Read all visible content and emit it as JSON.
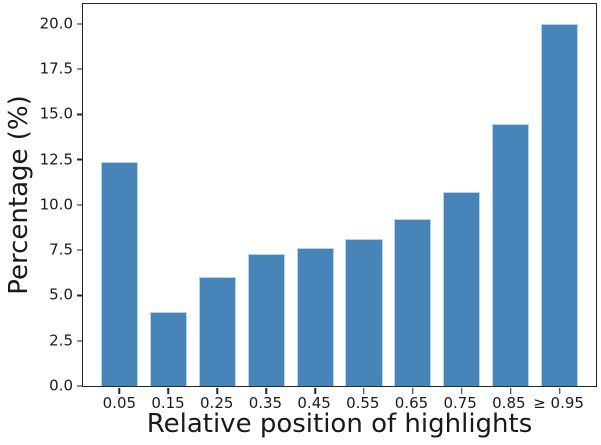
{
  "chart_data": {
    "type": "bar",
    "xlabel": "Relative position of highlights",
    "ylabel": "Percentage (%)",
    "categories": [
      "0.05",
      "0.15",
      "0.25",
      "0.35",
      "0.45",
      "0.55",
      "0.65",
      "0.75",
      "0.85",
      "≥ 0.95"
    ],
    "values": [
      12.4,
      4.1,
      6.0,
      7.3,
      7.6,
      8.1,
      9.2,
      10.7,
      14.5,
      20.0
    ],
    "ytick_labels": [
      "0.0",
      "2.5",
      "5.0",
      "7.5",
      "10.0",
      "12.5",
      "15.0",
      "17.5",
      "20.0"
    ],
    "ylim": [
      0,
      21.1
    ],
    "grid": false,
    "legend_visible": false,
    "bar_color": "#4784ba",
    "bar_edge_color": "#b5d4ea",
    "axis_color": "#262626",
    "background_color": "#ffffff"
  }
}
